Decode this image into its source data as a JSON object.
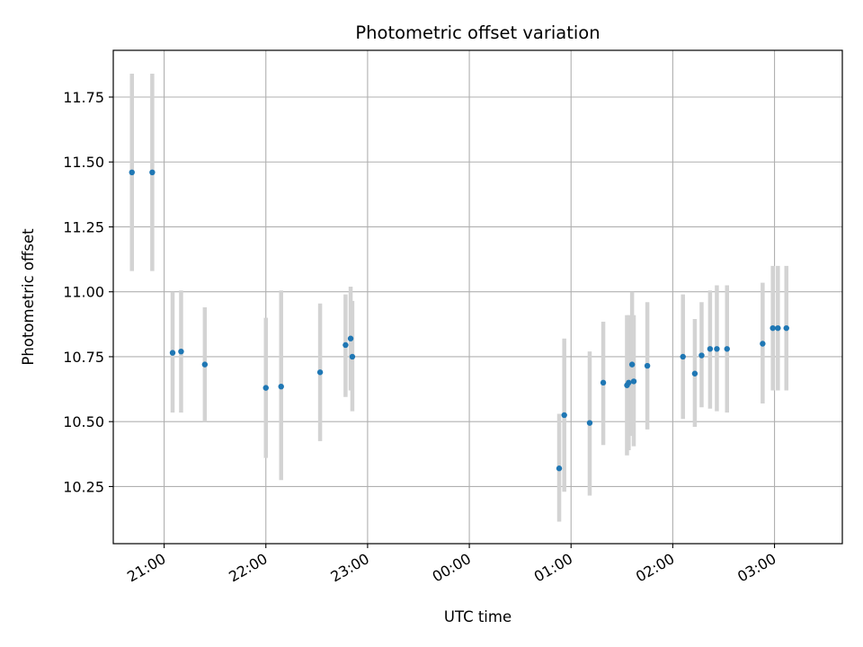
{
  "chart_data": {
    "type": "scatter",
    "title": "Photometric offset variation",
    "xlabel": "UTC time",
    "ylabel": "Photometric offset",
    "x_axis_type": "time",
    "xlim": [
      "20:30",
      "03:40"
    ],
    "ylim": [
      10.03,
      11.93
    ],
    "xticks": [
      "21:00",
      "22:00",
      "23:00",
      "00:00",
      "01:00",
      "02:00",
      "03:00"
    ],
    "yticks": [
      10.25,
      10.5,
      10.75,
      11.0,
      11.25,
      11.5,
      11.75
    ],
    "ytick_labels": [
      "10.25",
      "10.50",
      "10.75",
      "11.00",
      "11.25",
      "11.50",
      "11.75"
    ],
    "grid": true,
    "colors": {
      "point": "#1f77b4",
      "errorbar": "#d3d3d3",
      "grid": "#b0b0b0"
    },
    "points": [
      {
        "x": "20:41",
        "y": 11.46,
        "ylo": 11.08,
        "yhi": 11.84
      },
      {
        "x": "20:53",
        "y": 11.46,
        "ylo": 11.08,
        "yhi": 11.84
      },
      {
        "x": "21:05",
        "y": 10.765,
        "ylo": 10.535,
        "yhi": 11.0
      },
      {
        "x": "21:10",
        "y": 10.77,
        "ylo": 10.535,
        "yhi": 11.005
      },
      {
        "x": "21:24",
        "y": 10.72,
        "ylo": 10.5,
        "yhi": 10.94
      },
      {
        "x": "22:00",
        "y": 10.63,
        "ylo": 10.36,
        "yhi": 10.9
      },
      {
        "x": "22:09",
        "y": 10.635,
        "ylo": 10.275,
        "yhi": 11.005
      },
      {
        "x": "22:32",
        "y": 10.69,
        "ylo": 10.425,
        "yhi": 10.955
      },
      {
        "x": "22:47",
        "y": 10.795,
        "ylo": 10.595,
        "yhi": 10.99
      },
      {
        "x": "22:50",
        "y": 10.82,
        "ylo": 10.62,
        "yhi": 11.02
      },
      {
        "x": "22:51",
        "y": 10.75,
        "ylo": 10.54,
        "yhi": 10.965
      },
      {
        "x": "00:53",
        "y": 10.32,
        "ylo": 10.115,
        "yhi": 10.53
      },
      {
        "x": "00:56",
        "y": 10.525,
        "ylo": 10.23,
        "yhi": 10.82
      },
      {
        "x": "01:11",
        "y": 10.495,
        "ylo": 10.215,
        "yhi": 10.77
      },
      {
        "x": "01:19",
        "y": 10.65,
        "ylo": 10.41,
        "yhi": 10.885
      },
      {
        "x": "01:33",
        "y": 10.64,
        "ylo": 10.37,
        "yhi": 10.91
      },
      {
        "x": "01:34",
        "y": 10.65,
        "ylo": 10.39,
        "yhi": 10.91
      },
      {
        "x": "01:36",
        "y": 10.72,
        "ylo": 10.445,
        "yhi": 11.0
      },
      {
        "x": "01:37",
        "y": 10.655,
        "ylo": 10.405,
        "yhi": 10.91
      },
      {
        "x": "01:45",
        "y": 10.715,
        "ylo": 10.47,
        "yhi": 10.96
      },
      {
        "x": "02:06",
        "y": 10.75,
        "ylo": 10.51,
        "yhi": 10.99
      },
      {
        "x": "02:13",
        "y": 10.685,
        "ylo": 10.48,
        "yhi": 10.895
      },
      {
        "x": "02:17",
        "y": 10.755,
        "ylo": 10.555,
        "yhi": 10.96
      },
      {
        "x": "02:22",
        "y": 10.78,
        "ylo": 10.55,
        "yhi": 11.005
      },
      {
        "x": "02:26",
        "y": 10.78,
        "ylo": 10.54,
        "yhi": 11.025
      },
      {
        "x": "02:32",
        "y": 10.78,
        "ylo": 10.535,
        "yhi": 11.025
      },
      {
        "x": "02:53",
        "y": 10.8,
        "ylo": 10.57,
        "yhi": 11.035
      },
      {
        "x": "02:59",
        "y": 10.86,
        "ylo": 10.62,
        "yhi": 11.1
      },
      {
        "x": "03:02",
        "y": 10.86,
        "ylo": 10.62,
        "yhi": 11.1
      },
      {
        "x": "03:07",
        "y": 10.86,
        "ylo": 10.62,
        "yhi": 11.1
      }
    ]
  }
}
